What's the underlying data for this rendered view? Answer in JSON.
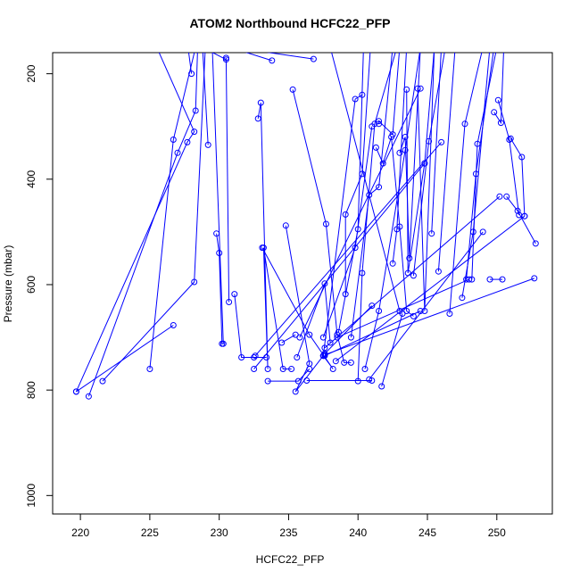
{
  "chart_data": {
    "type": "line",
    "title": "ATOM2 Northbound HCFC22_PFP",
    "xlabel": "HCFC22_PFP",
    "ylabel": "Pressure (mbar)",
    "xlim": [
      218,
      254
    ],
    "ylim": [
      1035,
      160
    ],
    "y_reversed": true,
    "x_ticks": [
      220,
      225,
      230,
      235,
      240,
      245,
      250
    ],
    "y_ticks": [
      200,
      400,
      600,
      800,
      1000
    ],
    "grid": false,
    "legend": "none",
    "series_color": "#0000ff",
    "marker": "open-circle",
    "series": [
      {
        "x": [
          219.7,
          227.7,
          228.2,
          225.5,
          227.5,
          228.0
        ],
        "y": [
          803,
          330,
          310,
          150,
          100,
          200
        ]
      },
      {
        "x": [
          220.6,
          227.0,
          228.3,
          228.5
        ],
        "y": [
          812,
          350,
          270,
          110
        ]
      },
      {
        "x": [
          221.6,
          228.2,
          229.0
        ],
        "y": [
          783,
          595,
          150
        ]
      },
      {
        "x": [
          225.0,
          226.7,
          228.3
        ],
        "y": [
          760,
          325,
          150
        ]
      },
      {
        "x": [
          226.7,
          219.7
        ],
        "y": [
          677,
          803
        ]
      },
      {
        "x": [
          229.2,
          228.8
        ],
        "y": [
          335,
          150
        ]
      },
      {
        "x": [
          229.8,
          230.0,
          230.2,
          230.3,
          229.5
        ],
        "y": [
          503,
          540,
          712,
          712,
          150
        ]
      },
      {
        "x": [
          230.7,
          230.5
        ],
        "y": [
          633,
          170
        ]
      },
      {
        "x": [
          231.1,
          231.6,
          232.5,
          233.4
        ],
        "y": [
          618,
          738,
          738,
          738
        ]
      },
      {
        "x": [
          230.5,
          228.8
        ],
        "y": [
          173,
          150
        ]
      },
      {
        "x": [
          232.8,
          233.0,
          233.5,
          233.2,
          234.6,
          235.2
        ],
        "y": [
          285,
          255,
          760,
          530,
          760,
          760
        ]
      },
      {
        "x": [
          233.1,
          236.5,
          238.2,
          237.5
        ],
        "y": [
          530,
          695,
          760,
          735
        ]
      },
      {
        "x": [
          233.5,
          235.7,
          236.5
        ],
        "y": [
          783,
          783,
          760
        ]
      },
      {
        "x": [
          234.5,
          235.5
        ],
        "y": [
          710,
          695
        ]
      },
      {
        "x": [
          234.8,
          236.5,
          235.5,
          237.5
        ],
        "y": [
          488,
          750,
          803,
          735
        ]
      },
      {
        "x": [
          235.3,
          237.7,
          238.5,
          239.0,
          239.5
        ],
        "y": [
          230,
          485,
          695,
          748,
          748
        ]
      },
      {
        "x": [
          235.6,
          237.6,
          238.0
        ],
        "y": [
          738,
          598,
          710
        ]
      },
      {
        "x": [
          237.5,
          239.8,
          240.3
        ],
        "y": [
          735,
          248,
          240
        ]
      },
      {
        "x": [
          237.5,
          239.8,
          241.0
        ],
        "y": [
          700,
          530,
          300
        ]
      },
      {
        "x": [
          238.6,
          240.0,
          240.4
        ],
        "y": [
          690,
          495,
          150
        ]
      },
      {
        "x": [
          239.1,
          239.1,
          240.3,
          240.9
        ],
        "y": [
          618,
          467,
          390,
          150
        ]
      },
      {
        "x": [
          239.5,
          240.8,
          241.5,
          242.5
        ],
        "y": [
          700,
          430,
          415,
          150
        ]
      },
      {
        "x": [
          240.0,
          240.3,
          241.2,
          242.8
        ],
        "y": [
          783,
          578,
          295,
          150
        ]
      },
      {
        "x": [
          240.5,
          241.5,
          243.4,
          244.5
        ],
        "y": [
          760,
          650,
          345,
          150
        ]
      },
      {
        "x": [
          241.3,
          241.8,
          242.4,
          243.0,
          243.5,
          244.0
        ],
        "y": [
          340,
          370,
          320,
          490,
          650,
          660
        ]
      },
      {
        "x": [
          241.5,
          241.5,
          242.5,
          243.0
        ],
        "y": [
          295,
          290,
          315,
          150
        ]
      },
      {
        "x": [
          242.5,
          242.8,
          243.5
        ],
        "y": [
          560,
          495,
          150
        ]
      },
      {
        "x": [
          243.0,
          243.4,
          243.7,
          244.5
        ],
        "y": [
          350,
          320,
          550,
          150
        ]
      },
      {
        "x": [
          243.5,
          243.6,
          244.8,
          245.5
        ],
        "y": [
          230,
          578,
          370,
          150
        ]
      },
      {
        "x": [
          244.3,
          244.8,
          245.5
        ],
        "y": [
          228,
          650,
          150
        ]
      },
      {
        "x": [
          244.0,
          245.1,
          246.3
        ],
        "y": [
          583,
          328,
          150
        ]
      },
      {
        "x": [
          245.3,
          246.0
        ],
        "y": [
          503,
          150
        ]
      },
      {
        "x": [
          245.8,
          247.0
        ],
        "y": [
          575,
          150
        ]
      },
      {
        "x": [
          246.6,
          247.7,
          249.0
        ],
        "y": [
          655,
          295,
          150
        ]
      },
      {
        "x": [
          247.5,
          248.3,
          249.5
        ],
        "y": [
          625,
          500,
          150
        ]
      },
      {
        "x": [
          247.8,
          248.5,
          249.8
        ],
        "y": [
          590,
          390,
          150
        ]
      },
      {
        "x": [
          248.2,
          248.6,
          250.0
        ],
        "y": [
          590,
          333,
          150
        ]
      },
      {
        "x": [
          249.8,
          250.3,
          250.5
        ],
        "y": [
          273,
          293,
          150
        ]
      },
      {
        "x": [
          250.1,
          250.9,
          251.6
        ],
        "y": [
          250,
          325,
          468
        ]
      },
      {
        "x": [
          250.4,
          249.5
        ],
        "y": [
          590,
          590
        ]
      },
      {
        "x": [
          250.7,
          251.5,
          252.8
        ],
        "y": [
          433,
          460,
          522
        ]
      },
      {
        "x": [
          251.0,
          251.8,
          252.0
        ],
        "y": [
          323,
          358,
          470
        ]
      },
      {
        "x": [
          252.7,
          237.6
        ],
        "y": [
          588,
          733
        ]
      },
      {
        "x": [
          244.5,
          237.6
        ],
        "y": [
          650,
          735
        ]
      },
      {
        "x": [
          243.2,
          241.7
        ],
        "y": [
          655,
          793
        ]
      },
      {
        "x": [
          250.2,
          237.6
        ],
        "y": [
          433,
          720
        ]
      },
      {
        "x": [
          248.0,
          238.5
        ],
        "y": [
          590,
          700
        ]
      },
      {
        "x": [
          241.0,
          236.3
        ],
        "y": [
          782,
          782
        ]
      },
      {
        "x": [
          240.2,
          231.0
        ],
        "y": [
          150,
          150
        ]
      },
      {
        "x": [
          246.0,
          232.6
        ],
        "y": [
          330,
          735
        ]
      },
      {
        "x": [
          244.5,
          235.8
        ],
        "y": [
          228,
          700
        ]
      },
      {
        "x": [
          249.0,
          240.8
        ],
        "y": [
          500,
          780
        ]
      },
      {
        "x": [
          244.8,
          232.5
        ],
        "y": [
          370,
          760
        ]
      },
      {
        "x": [
          252.0,
          238.4
        ],
        "y": [
          470,
          745
        ]
      },
      {
        "x": [
          236.8,
          231.0
        ],
        "y": [
          172,
          150
        ]
      },
      {
        "x": [
          233.8,
          230.8
        ],
        "y": [
          175,
          150
        ]
      },
      {
        "x": [
          243.0,
          238.0
        ],
        "y": [
          650,
          150
        ]
      },
      {
        "x": [
          241.0,
          237.6
        ],
        "y": [
          640,
          731
        ]
      }
    ]
  }
}
